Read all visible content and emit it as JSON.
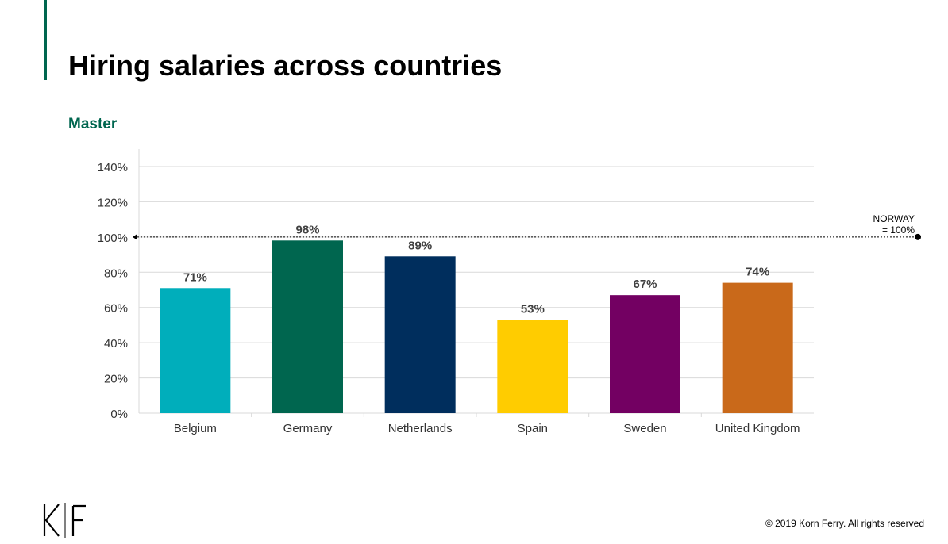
{
  "slide": {
    "title": "Hiring salaries across countries",
    "subtitle": "Master",
    "copyright": "© 2019 Korn Ferry. All rights reserved",
    "logo_icon": "korn-ferry-logo",
    "accent_color": "#00664f"
  },
  "chart_data": {
    "type": "bar",
    "categories": [
      "Belgium",
      "Germany",
      "Netherlands",
      "Spain",
      "Sweden",
      "United Kingdom"
    ],
    "values": [
      71,
      98,
      89,
      53,
      67,
      74
    ],
    "value_labels": [
      "71%",
      "98%",
      "89%",
      "53%",
      "67%",
      "74%"
    ],
    "colors": [
      "#00aebb",
      "#00664f",
      "#002e5d",
      "#ffcc00",
      "#730062",
      "#c9691a"
    ],
    "ylim": [
      0,
      140
    ],
    "yticks": [
      0,
      20,
      40,
      60,
      80,
      100,
      120,
      140
    ],
    "ytick_labels": [
      "0%",
      "20%",
      "40%",
      "60%",
      "80%",
      "100%",
      "120%",
      "140%"
    ],
    "grid": true,
    "reference_line": {
      "value": 100,
      "label_line1": "NORWAY",
      "label_line2": "= 100%"
    },
    "xlabel": "",
    "ylabel": ""
  }
}
